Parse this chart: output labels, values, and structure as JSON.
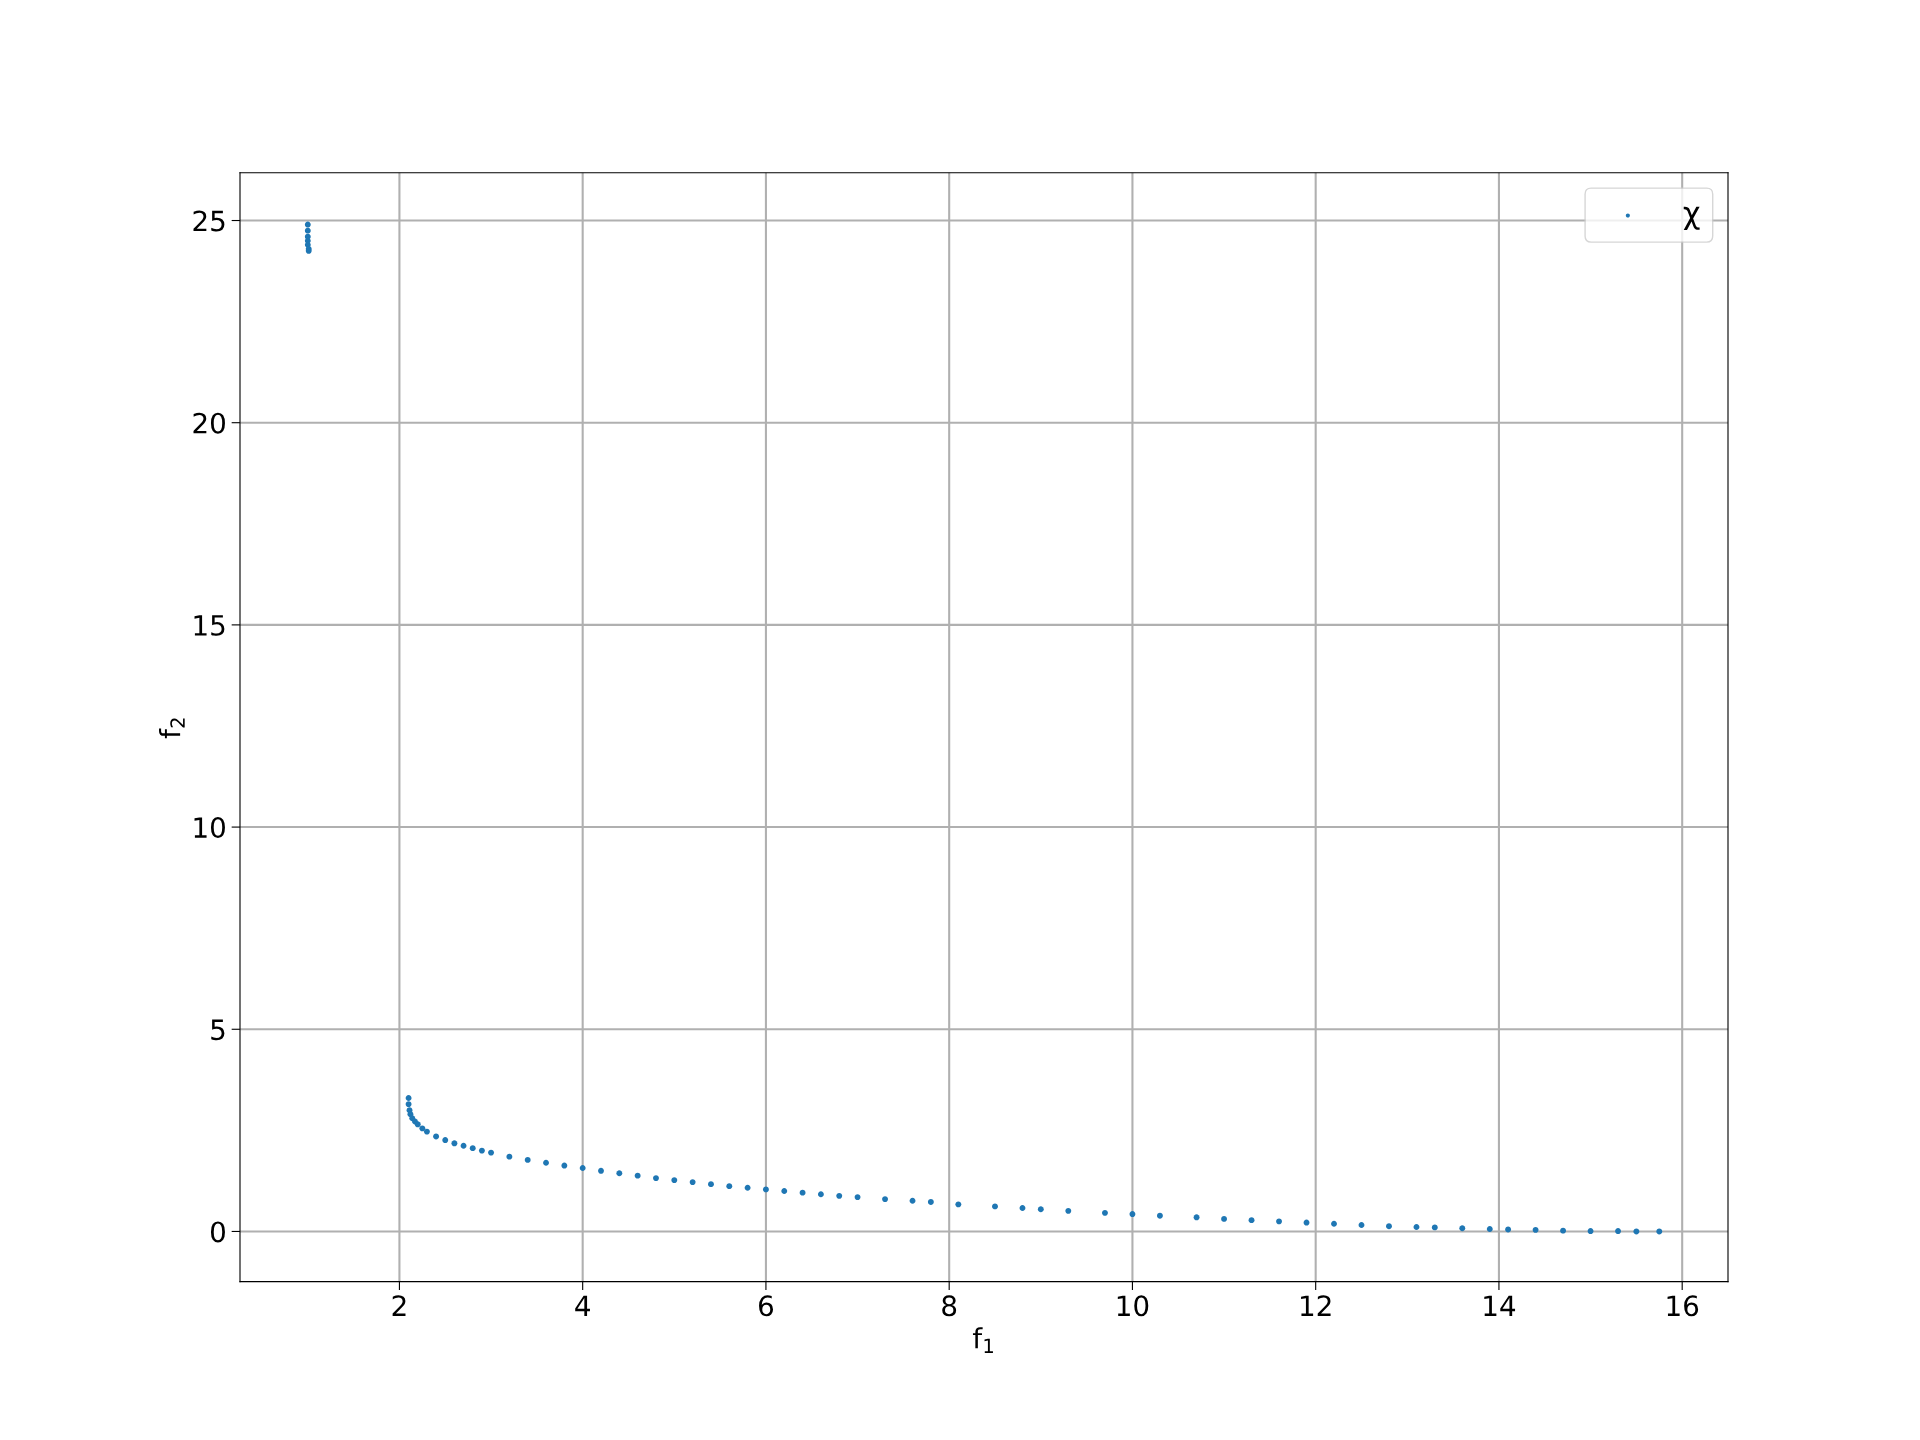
{
  "chart_data": {
    "type": "scatter",
    "xlabel": "f$_{1}$",
    "ylabel": "f$_{2}$",
    "xlim": [
      0.26,
      16.5
    ],
    "ylim": [
      -1.24,
      26.18
    ],
    "xticks": [
      2,
      4,
      6,
      8,
      10,
      12,
      14,
      16
    ],
    "yticks": [
      0,
      5,
      10,
      15,
      20,
      25
    ],
    "grid": true,
    "legend": "top right",
    "marker": "circle",
    "series": [
      {
        "name": "χ",
        "color": "#1f77b4",
        "x": [
          1.0,
          1.0,
          1.0,
          1.0,
          1.0,
          1.01,
          1.01,
          2.1,
          2.1,
          2.11,
          2.12,
          2.14,
          2.17,
          2.2,
          2.25,
          2.3,
          2.4,
          2.5,
          2.6,
          2.7,
          2.8,
          2.9,
          3.0,
          3.2,
          3.4,
          3.6,
          3.8,
          4.0,
          4.2,
          4.4,
          4.6,
          4.8,
          5.0,
          5.2,
          5.4,
          5.6,
          5.8,
          6.0,
          6.2,
          6.4,
          6.6,
          6.8,
          7.0,
          7.3,
          7.6,
          7.8,
          8.1,
          8.5,
          8.8,
          9.0,
          9.3,
          9.7,
          10.0,
          10.3,
          10.7,
          11.0,
          11.3,
          11.6,
          11.9,
          12.2,
          12.5,
          12.8,
          13.1,
          13.3,
          13.6,
          13.9,
          14.1,
          14.4,
          14.7,
          15.0,
          15.3,
          15.5,
          15.75
        ],
        "values": [
          24.9,
          24.75,
          24.6,
          24.5,
          24.4,
          24.3,
          24.25,
          3.3,
          3.15,
          3.0,
          2.9,
          2.8,
          2.72,
          2.65,
          2.55,
          2.47,
          2.35,
          2.26,
          2.18,
          2.12,
          2.06,
          2.0,
          1.95,
          1.85,
          1.77,
          1.7,
          1.63,
          1.57,
          1.5,
          1.44,
          1.38,
          1.32,
          1.27,
          1.22,
          1.17,
          1.12,
          1.08,
          1.04,
          1.0,
          0.96,
          0.92,
          0.88,
          0.85,
          0.8,
          0.76,
          0.73,
          0.67,
          0.62,
          0.58,
          0.55,
          0.51,
          0.46,
          0.43,
          0.39,
          0.35,
          0.31,
          0.28,
          0.25,
          0.22,
          0.19,
          0.16,
          0.13,
          0.11,
          0.1,
          0.08,
          0.06,
          0.05,
          0.04,
          0.02,
          0.01,
          0.01,
          0.0,
          0.0
        ]
      }
    ]
  }
}
